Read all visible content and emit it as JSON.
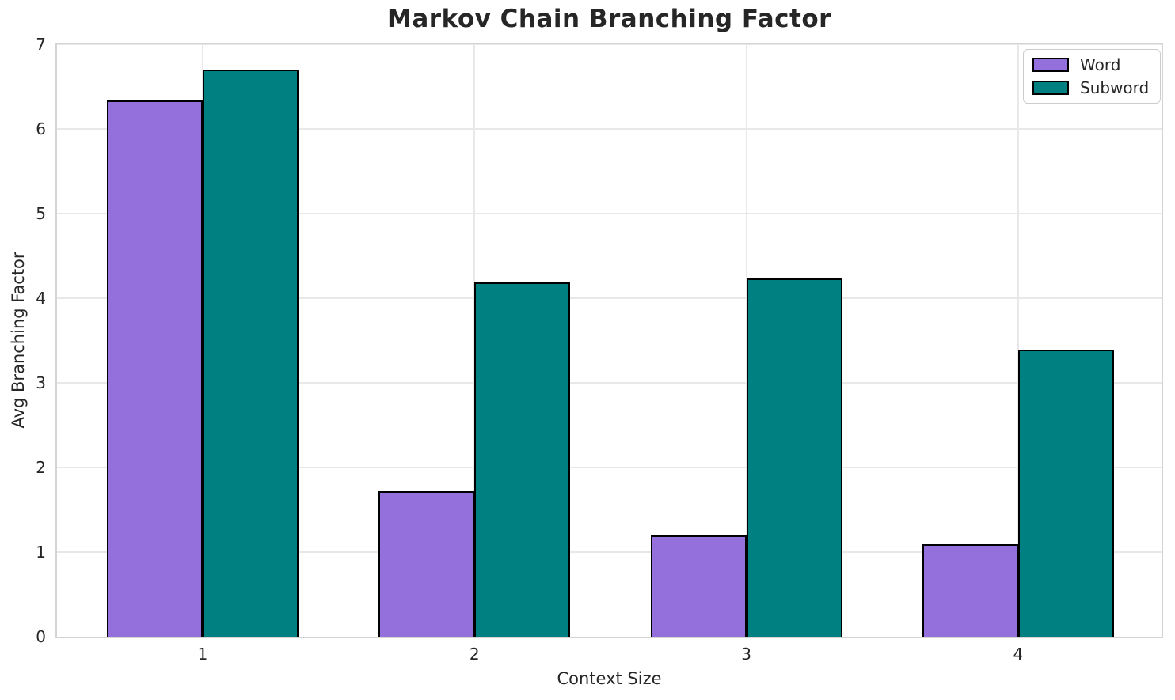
{
  "figure": {
    "title": "Markov Chain Branching Factor",
    "xlabel": "Context Size",
    "ylabel": "Avg Branching Factor"
  },
  "legend": {
    "items": [
      {
        "label": "Word",
        "color": "#9370DB"
      },
      {
        "label": "Subword",
        "color": "#008080"
      }
    ]
  },
  "chart_data": {
    "type": "bar",
    "title": "Markov Chain Branching Factor",
    "xlabel": "Context Size",
    "ylabel": "Avg Branching Factor",
    "categories": [
      "1",
      "2",
      "3",
      "4"
    ],
    "series": [
      {
        "name": "Word",
        "color": "#9370DB",
        "values": [
          6.34,
          1.72,
          1.2,
          1.09
        ]
      },
      {
        "name": "Subword",
        "color": "#008080",
        "values": [
          6.7,
          4.19,
          4.23,
          3.39
        ]
      }
    ],
    "ylim": [
      0,
      7
    ],
    "yticks": [
      0,
      1,
      2,
      3,
      4,
      5,
      6,
      7
    ],
    "grid": true,
    "grid_color": "#e8e8e8",
    "bar_edge_color": "#000000",
    "background": "#ffffff",
    "legend_position": "upper right"
  }
}
